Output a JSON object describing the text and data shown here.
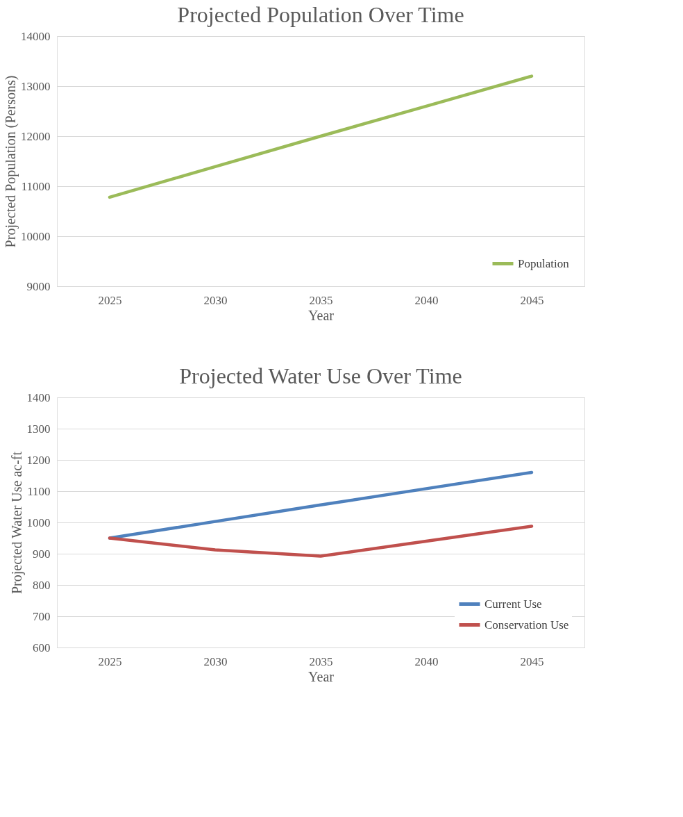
{
  "chart_data": [
    {
      "type": "line",
      "title": "Projected Population Over Time",
      "xlabel": "Year",
      "ylabel": "Projected Population (Persons)",
      "categories": [
        "2025",
        "2030",
        "2035",
        "2040",
        "2045"
      ],
      "series": [
        {
          "name": "Population",
          "color": "#9bbb59",
          "values": [
            10780,
            11390,
            12000,
            12600,
            13200
          ]
        }
      ],
      "ylim": [
        9000,
        14000
      ],
      "yticks": [
        9000,
        10000,
        11000,
        12000,
        13000,
        14000
      ],
      "grid": "y",
      "legend": "bottom right",
      "marker": "none",
      "line_style": "solid"
    },
    {
      "type": "line",
      "title": "Projected Water Use Over Time",
      "xlabel": "Year",
      "ylabel": "Projected Water Use ac-ft",
      "categories": [
        "2025",
        "2030",
        "2035",
        "2040",
        "2045"
      ],
      "series": [
        {
          "name": "Current Use",
          "color": "#4f81bd",
          "values": [
            950,
            1003,
            1056,
            1108,
            1160
          ]
        },
        {
          "name": "Conservation Use",
          "color": "#c0504d",
          "values": [
            950,
            912,
            892,
            940,
            988
          ]
        }
      ],
      "ylim": [
        600,
        1400
      ],
      "yticks": [
        600,
        700,
        800,
        900,
        1000,
        1100,
        1200,
        1300,
        1400
      ],
      "grid": "y",
      "legend": "bottom right",
      "marker": "none",
      "line_style": "solid"
    }
  ]
}
